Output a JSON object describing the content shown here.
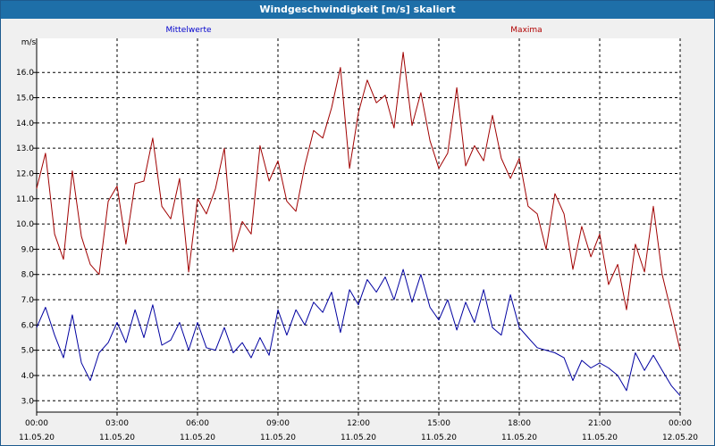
{
  "window": {
    "title": "Windgeschwindigkeit [m/s] skaliert"
  },
  "legend": {
    "left": "Mittelwerte",
    "right": "Maxima"
  },
  "chart_data": {
    "type": "line",
    "title": "Windgeschwindigkeit [m/s] skaliert",
    "ylabel": "m/s",
    "xlabel": "",
    "ylim": [
      2.55,
      17.35
    ],
    "xlim": [
      0,
      24
    ],
    "yticks": [
      3.0,
      4.0,
      5.0,
      6.0,
      7.0,
      8.0,
      9.0,
      10.0,
      11.0,
      12.0,
      13.0,
      14.0,
      15.0,
      16.0
    ],
    "ytick_labels": [
      "3.0",
      "4.0",
      "5.0",
      "6.0",
      "7.0",
      "8.0",
      "9.0",
      "10.0",
      "11.0",
      "12.0",
      "13.0",
      "14.0",
      "15.0",
      "16.0"
    ],
    "xticks": [
      {
        "hours": 0,
        "time": "00:00",
        "date": "11.05.20"
      },
      {
        "hours": 3,
        "time": "03:00",
        "date": "11.05.20"
      },
      {
        "hours": 6,
        "time": "06:00",
        "date": "11.05.20"
      },
      {
        "hours": 9,
        "time": "09:00",
        "date": "11.05.20"
      },
      {
        "hours": 12,
        "time": "12:00",
        "date": "11.05.20"
      },
      {
        "hours": 15,
        "time": "15:00",
        "date": "11.05.20"
      },
      {
        "hours": 18,
        "time": "18:00",
        "date": "11.05.20"
      },
      {
        "hours": 21,
        "time": "21:00",
        "date": "11.05.20"
      },
      {
        "hours": 24,
        "time": "00:00",
        "date": "12.05.20"
      }
    ],
    "grid": true,
    "legend_placement": "top",
    "x_hours": [
      0,
      0.33,
      0.67,
      1,
      1.33,
      1.67,
      2,
      2.33,
      2.67,
      3,
      3.33,
      3.67,
      4,
      4.33,
      4.67,
      5,
      5.33,
      5.67,
      6,
      6.33,
      6.67,
      7,
      7.33,
      7.67,
      8,
      8.33,
      8.67,
      9,
      9.33,
      9.67,
      10,
      10.33,
      10.67,
      11,
      11.33,
      11.67,
      12,
      12.33,
      12.67,
      13,
      13.33,
      13.67,
      14,
      14.33,
      14.67,
      15,
      15.33,
      15.67,
      16,
      16.33,
      16.67,
      17,
      17.33,
      17.67,
      18,
      18.33,
      18.67,
      19,
      19.33,
      19.67,
      20,
      20.33,
      20.67,
      21,
      21.33,
      21.67,
      22,
      22.33,
      22.67,
      23,
      23.33,
      23.67,
      24
    ],
    "series": [
      {
        "name": "Mittelwerte",
        "color": "#0000a0",
        "values": [
          5.9,
          6.7,
          5.6,
          4.7,
          6.4,
          4.5,
          3.8,
          4.9,
          5.3,
          6.1,
          5.3,
          6.6,
          5.5,
          6.8,
          5.2,
          5.4,
          6.1,
          5.0,
          6.1,
          5.1,
          5.0,
          5.9,
          4.9,
          5.3,
          4.7,
          5.5,
          4.8,
          6.6,
          5.6,
          6.6,
          6.0,
          6.9,
          6.5,
          7.3,
          5.7,
          7.4,
          6.8,
          7.8,
          7.3,
          7.9,
          7.0,
          8.2,
          6.9,
          8.0,
          6.7,
          6.2,
          7.0,
          5.8,
          6.9,
          6.1,
          7.4,
          5.9,
          5.6,
          7.2,
          5.9,
          5.5,
          5.1,
          5.0,
          4.9,
          4.7,
          3.8,
          4.6,
          4.3,
          4.5,
          4.3,
          4.0,
          3.4,
          4.9,
          4.2,
          4.8,
          4.2,
          3.6,
          3.2
        ]
      },
      {
        "name": "Maxima",
        "color": "#a00000",
        "values": [
          11.4,
          12.8,
          9.6,
          8.6,
          12.1,
          9.5,
          8.4,
          8.0,
          10.9,
          11.5,
          9.2,
          11.6,
          11.7,
          13.4,
          10.7,
          10.2,
          11.8,
          8.1,
          11.0,
          10.4,
          11.4,
          13.0,
          8.9,
          10.1,
          9.6,
          13.1,
          11.7,
          12.5,
          10.9,
          10.5,
          12.3,
          13.7,
          13.4,
          14.6,
          16.2,
          12.2,
          14.4,
          15.7,
          14.8,
          15.1,
          13.8,
          16.8,
          13.9,
          15.2,
          13.3,
          12.2,
          12.8,
          15.4,
          12.3,
          13.1,
          12.5,
          14.3,
          12.6,
          11.8,
          12.6,
          10.7,
          10.4,
          9.0,
          11.2,
          10.4,
          8.2,
          9.9,
          8.7,
          9.6,
          7.6,
          8.4,
          6.6,
          9.2,
          8.1,
          10.7,
          8.0,
          6.5,
          5.0
        ]
      }
    ]
  }
}
